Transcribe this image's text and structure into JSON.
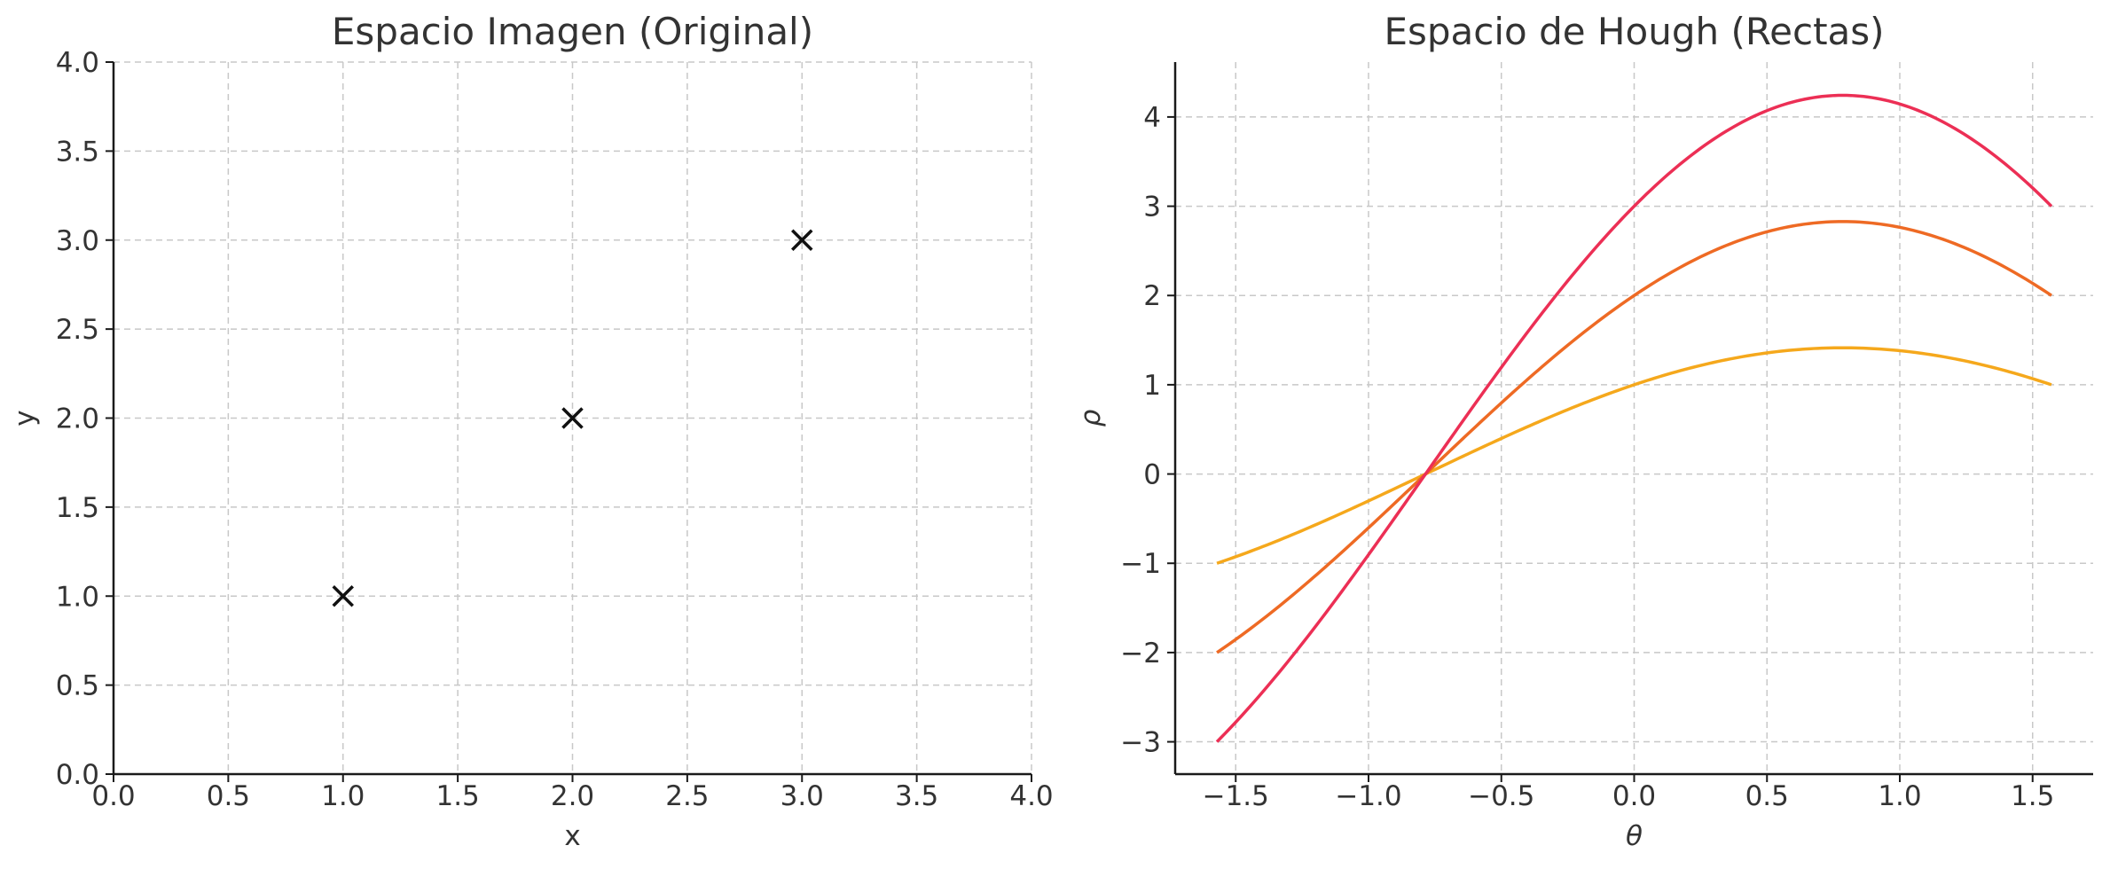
{
  "chart_data": [
    {
      "type": "scatter",
      "title": "Espacio Imagen (Original)",
      "xlabel": "x",
      "ylabel": "y",
      "xlim": [
        0,
        4
      ],
      "ylim": [
        0,
        4
      ],
      "xticks": [
        0.0,
        0.5,
        1.0,
        1.5,
        2.0,
        2.5,
        3.0,
        3.5,
        4.0
      ],
      "yticks": [
        0.0,
        0.5,
        1.0,
        1.5,
        2.0,
        2.5,
        3.0,
        3.5,
        4.0
      ],
      "xtick_labels": [
        "0.0",
        "0.5",
        "1.0",
        "1.5",
        "2.0",
        "2.5",
        "3.0",
        "3.5",
        "4.0"
      ],
      "ytick_labels": [
        "0.0",
        "0.5",
        "1.0",
        "1.5",
        "2.0",
        "2.5",
        "3.0",
        "3.5",
        "4.0"
      ],
      "grid": true,
      "marker": "x",
      "marker_color": "#111111",
      "points": [
        {
          "x": 1,
          "y": 1
        },
        {
          "x": 2,
          "y": 2
        },
        {
          "x": 3,
          "y": 3
        }
      ]
    },
    {
      "type": "line",
      "title": "Espacio de Hough (Rectas)",
      "xlabel": "θ",
      "ylabel": "ρ",
      "xlim": [
        -1.7279,
        1.7279
      ],
      "ylim": [
        -3.362,
        4.615
      ],
      "xticks": [
        -1.5,
        -1.0,
        -0.5,
        0.0,
        0.5,
        1.0,
        1.5
      ],
      "yticks": [
        -3,
        -2,
        -1,
        0,
        1,
        2,
        3,
        4
      ],
      "xtick_labels": [
        "−1.5",
        "−1.0",
        "−0.5",
        "0.0",
        "0.5",
        "1.0",
        "1.5"
      ],
      "ytick_labels": [
        "−3",
        "−2",
        "−1",
        "0",
        "1",
        "2",
        "3",
        "4"
      ],
      "grid": true,
      "x_range": [
        -1.5708,
        1.5708
      ],
      "series": [
        {
          "formula": "rho = 1*cos(theta) + 1*sin(theta)",
          "px": 1,
          "py": 1,
          "color": "#f5a81c"
        },
        {
          "formula": "rho = 2*cos(theta) + 2*sin(theta)",
          "px": 2,
          "py": 2,
          "color": "#ee6a24"
        },
        {
          "formula": "rho = 3*cos(theta) + 3*sin(theta)",
          "px": 3,
          "py": 3,
          "color": "#ec2f55"
        }
      ]
    }
  ]
}
